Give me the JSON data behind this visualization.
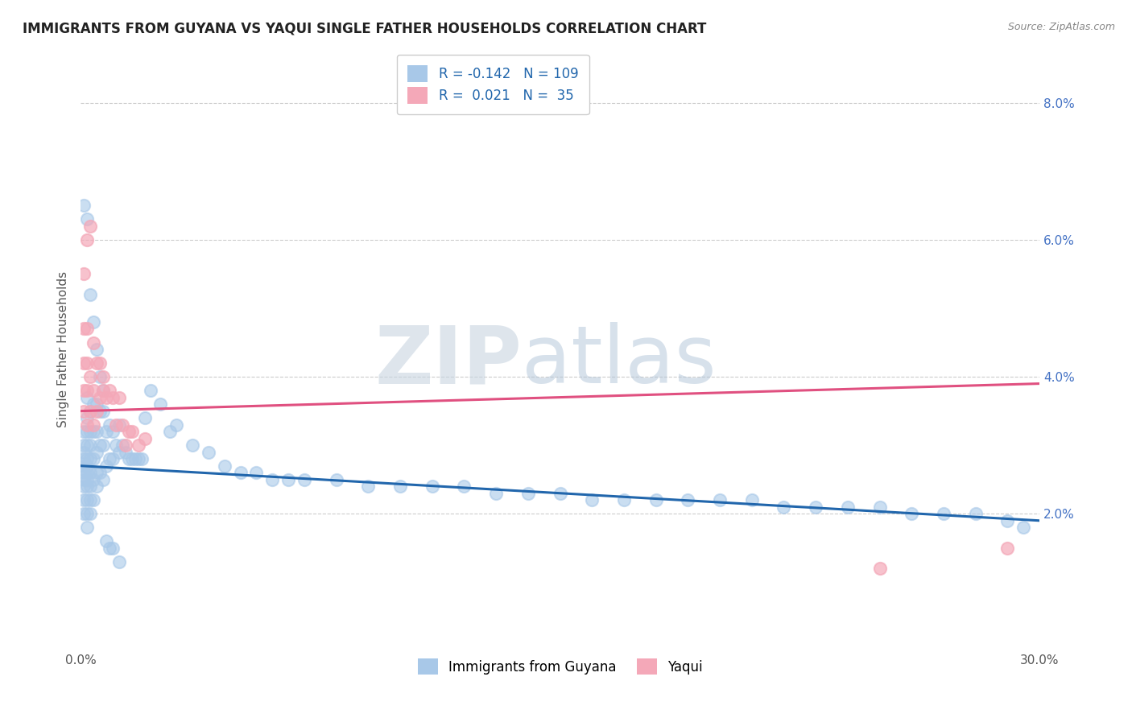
{
  "title": "IMMIGRANTS FROM GUYANA VS YAQUI SINGLE FATHER HOUSEHOLDS CORRELATION CHART",
  "source": "Source: ZipAtlas.com",
  "ylabel": "Single Father Households",
  "xlim": [
    0.0,
    0.3
  ],
  "ylim": [
    0.0,
    0.088
  ],
  "xticks": [
    0.0,
    0.05,
    0.1,
    0.15,
    0.2,
    0.25,
    0.3
  ],
  "yticks_right": [
    0.02,
    0.04,
    0.06,
    0.08
  ],
  "ytick_labels_right": [
    "2.0%",
    "4.0%",
    "6.0%",
    "8.0%"
  ],
  "xtick_labels": [
    "0.0%",
    "",
    "",
    "",
    "",
    "",
    "30.0%"
  ],
  "R_guyana": -0.142,
  "N_guyana": 109,
  "R_yaqui": 0.021,
  "N_yaqui": 35,
  "blue_color": "#a8c8e8",
  "pink_color": "#f4a8b8",
  "blue_line_color": "#2166ac",
  "pink_line_color": "#e05080",
  "blue_line_start": 0.027,
  "blue_line_end": 0.019,
  "pink_line_start": 0.035,
  "pink_line_end": 0.039,
  "watermark_zip": "ZIP",
  "watermark_atlas": "atlas",
  "background_color": "#ffffff",
  "grid_color": "#cccccc",
  "seed": 42,
  "guyana_x": [
    0.001,
    0.001,
    0.001,
    0.001,
    0.001,
    0.001,
    0.001,
    0.001,
    0.001,
    0.001,
    0.002,
    0.002,
    0.002,
    0.002,
    0.002,
    0.002,
    0.002,
    0.002,
    0.002,
    0.002,
    0.002,
    0.002,
    0.003,
    0.003,
    0.003,
    0.003,
    0.003,
    0.003,
    0.003,
    0.003,
    0.004,
    0.004,
    0.004,
    0.004,
    0.004,
    0.005,
    0.005,
    0.005,
    0.005,
    0.005,
    0.006,
    0.006,
    0.006,
    0.007,
    0.007,
    0.007,
    0.008,
    0.008,
    0.009,
    0.009,
    0.01,
    0.01,
    0.011,
    0.012,
    0.012,
    0.013,
    0.014,
    0.015,
    0.016,
    0.017,
    0.018,
    0.019,
    0.02,
    0.022,
    0.025,
    0.028,
    0.03,
    0.035,
    0.04,
    0.045,
    0.05,
    0.055,
    0.06,
    0.065,
    0.07,
    0.08,
    0.09,
    0.1,
    0.11,
    0.12,
    0.13,
    0.14,
    0.15,
    0.16,
    0.17,
    0.18,
    0.19,
    0.2,
    0.21,
    0.22,
    0.23,
    0.24,
    0.25,
    0.26,
    0.27,
    0.28,
    0.29,
    0.295,
    0.001,
    0.002,
    0.003,
    0.004,
    0.005,
    0.006,
    0.007,
    0.008,
    0.009,
    0.01,
    0.012
  ],
  "guyana_y": [
    0.02,
    0.022,
    0.024,
    0.025,
    0.026,
    0.027,
    0.028,
    0.029,
    0.03,
    0.032,
    0.018,
    0.02,
    0.022,
    0.024,
    0.025,
    0.026,
    0.027,
    0.028,
    0.03,
    0.032,
    0.034,
    0.037,
    0.02,
    0.022,
    0.024,
    0.026,
    0.028,
    0.03,
    0.032,
    0.035,
    0.022,
    0.025,
    0.028,
    0.032,
    0.036,
    0.024,
    0.026,
    0.029,
    0.032,
    0.036,
    0.026,
    0.03,
    0.035,
    0.025,
    0.03,
    0.035,
    0.027,
    0.032,
    0.028,
    0.033,
    0.028,
    0.032,
    0.03,
    0.029,
    0.033,
    0.03,
    0.029,
    0.028,
    0.028,
    0.028,
    0.028,
    0.028,
    0.034,
    0.038,
    0.036,
    0.032,
    0.033,
    0.03,
    0.029,
    0.027,
    0.026,
    0.026,
    0.025,
    0.025,
    0.025,
    0.025,
    0.024,
    0.024,
    0.024,
    0.024,
    0.023,
    0.023,
    0.023,
    0.022,
    0.022,
    0.022,
    0.022,
    0.022,
    0.022,
    0.021,
    0.021,
    0.021,
    0.021,
    0.02,
    0.02,
    0.02,
    0.019,
    0.018,
    0.065,
    0.063,
    0.052,
    0.048,
    0.044,
    0.04,
    0.038,
    0.016,
    0.015,
    0.015,
    0.013
  ],
  "yaqui_x": [
    0.001,
    0.001,
    0.001,
    0.001,
    0.001,
    0.002,
    0.002,
    0.002,
    0.002,
    0.002,
    0.003,
    0.003,
    0.003,
    0.004,
    0.004,
    0.004,
    0.005,
    0.005,
    0.006,
    0.006,
    0.007,
    0.007,
    0.008,
    0.009,
    0.01,
    0.011,
    0.012,
    0.013,
    0.014,
    0.015,
    0.016,
    0.018,
    0.02,
    0.25,
    0.29
  ],
  "yaqui_y": [
    0.035,
    0.038,
    0.042,
    0.047,
    0.055,
    0.033,
    0.038,
    0.042,
    0.047,
    0.06,
    0.035,
    0.04,
    0.062,
    0.033,
    0.038,
    0.045,
    0.035,
    0.042,
    0.037,
    0.042,
    0.038,
    0.04,
    0.037,
    0.038,
    0.037,
    0.033,
    0.037,
    0.033,
    0.03,
    0.032,
    0.032,
    0.03,
    0.031,
    0.012,
    0.015
  ]
}
